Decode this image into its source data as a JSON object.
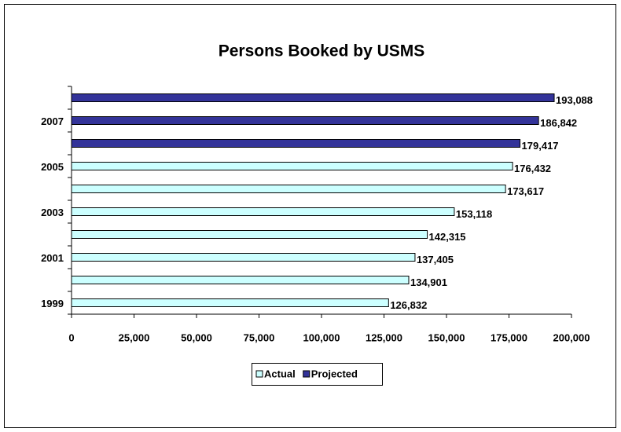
{
  "chart_data": {
    "type": "hbar",
    "title": "Persons Booked by USMS",
    "categories": [
      "1999",
      null,
      "2001",
      null,
      "2003",
      null,
      "2005",
      null,
      "2007",
      null
    ],
    "series": [
      {
        "name": "Actual",
        "color": "#ccffff",
        "values": [
          126832,
          134901,
          137405,
          142315,
          153118,
          173617,
          176432,
          null,
          null,
          null
        ],
        "value_labels": [
          "126,832",
          "134,901",
          "137,405",
          "142,315",
          "153,118",
          "173,617",
          "176,432",
          null,
          null,
          null
        ]
      },
      {
        "name": "Projected",
        "color": "#333399",
        "values": [
          null,
          null,
          null,
          null,
          null,
          null,
          null,
          179417,
          186842,
          193088
        ],
        "value_labels": [
          null,
          null,
          null,
          null,
          null,
          null,
          null,
          "179,417",
          "186,842",
          "193,088"
        ]
      }
    ],
    "xlim": [
      0,
      200000
    ],
    "xticks": [
      0,
      {
        "value": 25000,
        "label": "25,000"
      },
      {
        "value": 50000,
        "label": "50,000"
      },
      {
        "value": 75000,
        "label": "75,000"
      },
      {
        "value": 100000,
        "label": "100,000"
      },
      {
        "value": 125000,
        "label": "125,000"
      },
      {
        "value": 150000,
        "label": "150,000"
      },
      {
        "value": 175000,
        "label": "175,000"
      },
      {
        "value": 200000,
        "label": "200,000"
      }
    ],
    "legend": "bottom"
  }
}
